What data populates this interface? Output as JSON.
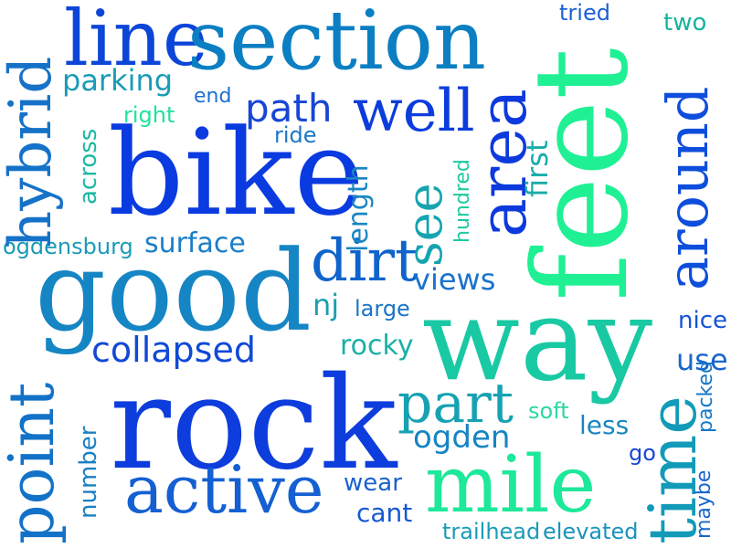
{
  "words": {
    "line": {
      "text": "line",
      "color": "#0c46d8"
    },
    "section": {
      "text": "section",
      "color": "#0b7fc2"
    },
    "tried": {
      "text": "tried",
      "color": "#1d5fd6"
    },
    "two": {
      "text": "two",
      "color": "#15b39c"
    },
    "parking": {
      "text": "parking",
      "color": "#1a9bb6"
    },
    "end": {
      "text": "end",
      "color": "#1d6fd0"
    },
    "path": {
      "text": "path",
      "color": "#1746d6"
    },
    "well": {
      "text": "well",
      "color": "#0c3ddc"
    },
    "right": {
      "text": "right",
      "color": "#1ee39a"
    },
    "ride": {
      "text": "ride",
      "color": "#1a77c7"
    },
    "bike": {
      "text": "bike",
      "color": "#0a3be0"
    },
    "surface": {
      "text": "surface",
      "color": "#1a7ec8"
    },
    "ogdensburg": {
      "text": "ogdensburg",
      "color": "#1a9bb6"
    },
    "dirt": {
      "text": "dirt",
      "color": "#0f64cc"
    },
    "views": {
      "text": "views",
      "color": "#1a73cc"
    },
    "good": {
      "text": "good",
      "color": "#1585c4"
    },
    "nj": {
      "text": "nj",
      "color": "#1aa0b0"
    },
    "large": {
      "text": "large",
      "color": "#1a74c8"
    },
    "way": {
      "text": "way",
      "color": "#19c9a4"
    },
    "nice": {
      "text": "nice",
      "color": "#1454d4"
    },
    "collapsed": {
      "text": "collapsed",
      "color": "#1048d8"
    },
    "rocky": {
      "text": "rocky",
      "color": "#1ab0a6"
    },
    "use": {
      "text": "use",
      "color": "#1a66cc"
    },
    "rock": {
      "text": "rock",
      "color": "#0d3ddc"
    },
    "part": {
      "text": "part",
      "color": "#16a2b2"
    },
    "soft": {
      "text": "soft",
      "color": "#2bd8a4"
    },
    "less": {
      "text": "less",
      "color": "#1a86c2"
    },
    "ogden": {
      "text": "ogden",
      "color": "#1584c4"
    },
    "go": {
      "text": "go",
      "color": "#1746d6"
    },
    "mile": {
      "text": "mile",
      "color": "#1ee89a"
    },
    "active": {
      "text": "active",
      "color": "#1460d2"
    },
    "wear": {
      "text": "wear",
      "color": "#1a62cc"
    },
    "cant": {
      "text": "cant",
      "color": "#1659d2"
    },
    "trailhead": {
      "text": "trailhead",
      "color": "#1a9bb8"
    },
    "elevated": {
      "text": "elevated",
      "color": "#1a93bc"
    },
    "hybrid": {
      "text": "hybrid",
      "color": "#1572c8"
    },
    "across": {
      "text": "across",
      "color": "#1ab8a4"
    },
    "length": {
      "text": "length",
      "color": "#1a86c2"
    },
    "see": {
      "text": "see",
      "color": "#16a4b0"
    },
    "hundred": {
      "text": "hundred",
      "color": "#1ec8a2"
    },
    "area": {
      "text": "area",
      "color": "#0d3adc"
    },
    "first": {
      "text": "first",
      "color": "#1aaba8"
    },
    "feet": {
      "text": "feet",
      "color": "#20f094"
    },
    "around": {
      "text": "around",
      "color": "#0e4edc"
    },
    "point": {
      "text": "point",
      "color": "#1272c8"
    },
    "number": {
      "text": "number",
      "color": "#1a80c4"
    },
    "time": {
      "text": "time",
      "color": "#129ab8"
    },
    "maybe": {
      "text": "maybe",
      "color": "#1a66cc"
    },
    "packed": {
      "text": "packed",
      "color": "#1578c8"
    }
  }
}
